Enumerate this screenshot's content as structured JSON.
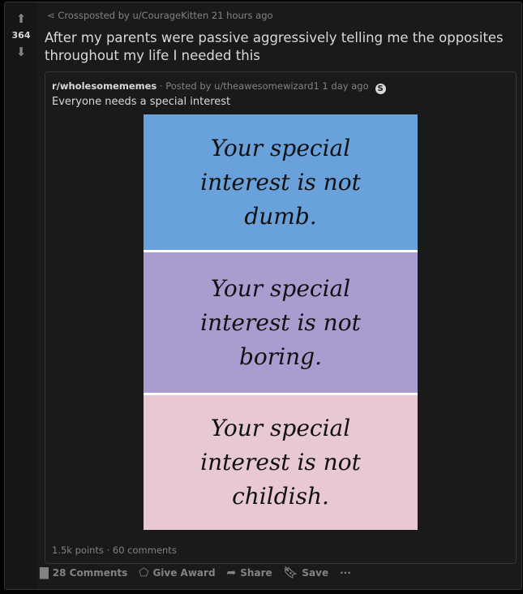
{
  "vote": {
    "score": "364"
  },
  "crosspost": {
    "label": "Crossposted by u/CourageKitten 21 hours ago"
  },
  "title": "After my parents were passive aggressively telling me the opposites throughout my life I needed this",
  "original": {
    "subreddit": "r/wholesomememes",
    "posted_by": "· Posted by u/theawesomewizard1 1 day ago",
    "badge": "S",
    "title": "Everyone needs a special interest",
    "image": {
      "panels": [
        {
          "text": "Your special interest is not dumb.",
          "color": "#69a1db"
        },
        {
          "text": "Your special interest is not boring.",
          "color": "#ab9ccf"
        },
        {
          "text": "Your special interest is not childish.",
          "color": "#e8c8d5"
        }
      ]
    },
    "stats": "1.5k points · 60 comments"
  },
  "actions": {
    "comments": "28 Comments",
    "award": "Give Award",
    "share": "Share",
    "save": "Save",
    "more": "···"
  }
}
